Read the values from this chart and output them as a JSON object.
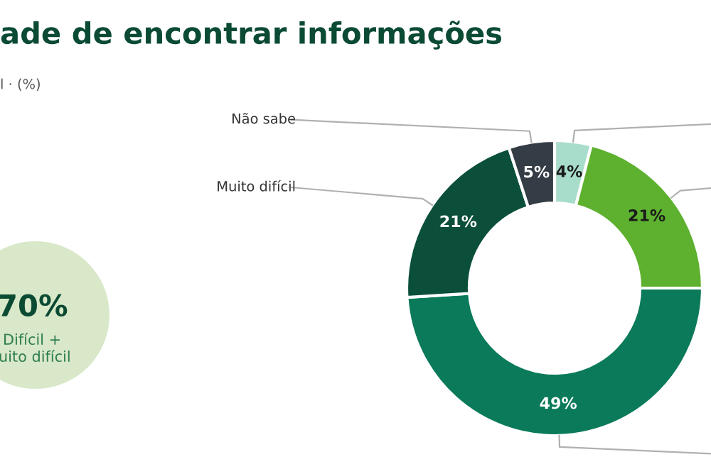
{
  "chart_data": {
    "type": "donut",
    "title": "ade de encontrar informações",
    "subtitle": "l · (%)",
    "categories": [
      null,
      null,
      null,
      "Muito difícil",
      "Não sabe"
    ],
    "values": [
      4,
      21,
      49,
      21,
      5
    ],
    "colors": [
      "#a8dccb",
      "#5db12f",
      "#0a7a5a",
      "#0b4f3a",
      "#343d45"
    ],
    "value_labels": [
      "4%",
      "21%",
      "49%",
      "21%",
      "5%"
    ],
    "legend": false,
    "annotations": [
      "70%",
      "Difícil +",
      "uito difícil"
    ]
  }
}
